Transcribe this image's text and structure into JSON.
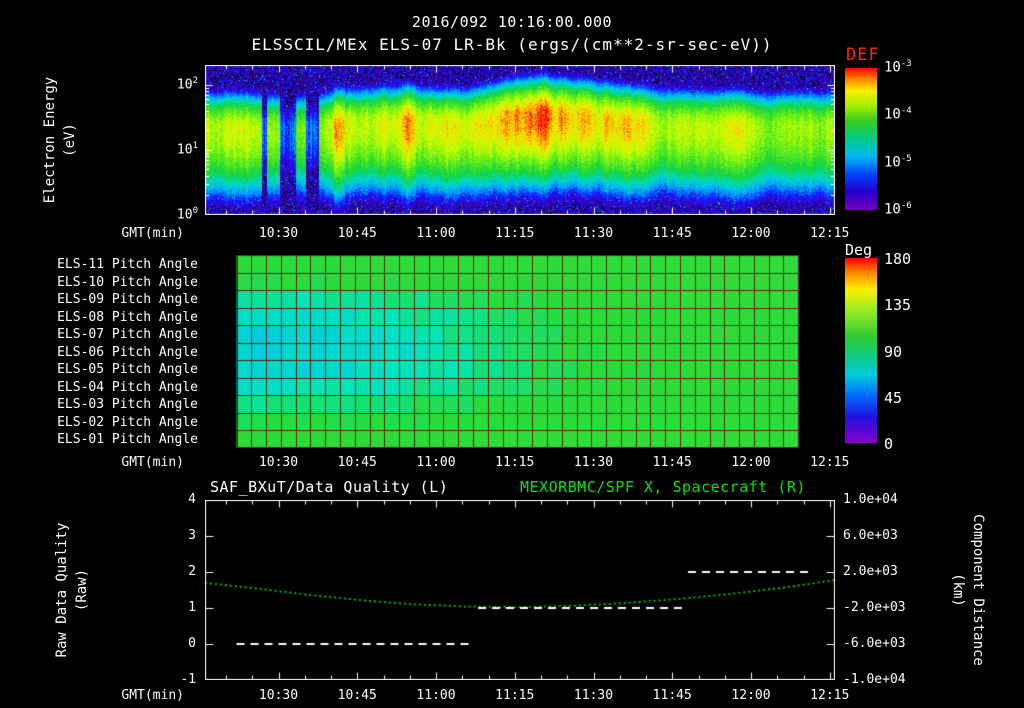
{
  "header": {
    "timestamp_title": "2016/092 10:16:00.000",
    "instrument_title": "ELSSCIL/MEx ELS-07 LR-Bk  (ergs/(cm**2-sr-sec-eV))",
    "def_label": "DEF"
  },
  "colors": {
    "background": "#000000",
    "text": "#ffffff",
    "def_red": "#ff2600",
    "title_green": "#00e600",
    "curve_green": "#00cc00",
    "quality_white": "#ffffff",
    "grid_maroon": "#5e2600"
  },
  "time_axis": {
    "label": "GMT(min)",
    "start": "10:16",
    "range_minutes": 120,
    "tick_labels": [
      "10:30",
      "10:45",
      "11:00",
      "11:15",
      "11:30",
      "11:45",
      "12:00",
      "12:15"
    ],
    "tick_minutes": [
      14,
      29,
      44,
      59,
      74,
      89,
      104,
      119
    ],
    "minor_step_minutes": 5
  },
  "chart_data": [
    {
      "type": "heatmap",
      "name": "electron-energy-spectrogram",
      "ylabel_lines": [
        "Electron Energy",
        "(eV)"
      ],
      "y_axis": {
        "scale": "log",
        "log_range": [
          0,
          2.3
        ],
        "tick_exponents": [
          2,
          1,
          0
        ]
      },
      "colorbar": {
        "label": "DEF",
        "tick_exponents": [
          -3,
          -4,
          -5,
          -6
        ],
        "log10_flux_range": [
          -6.3,
          -2.9
        ],
        "units": "ergs/(cm**2-sr-sec-eV)"
      },
      "model": {
        "step_minutes": 5,
        "band_peak_log10_flux": [
          -3.75,
          -3.8,
          -3.7,
          -4.3,
          -4.2,
          -3.55,
          -3.7,
          -3.6,
          -3.55,
          -3.7,
          -3.65,
          -3.45,
          -3.15,
          -3.1,
          -3.25,
          -3.5,
          -3.45,
          -3.6,
          -3.75,
          -3.7,
          -3.65,
          -3.75,
          -3.7,
          -3.8,
          -3.85
        ],
        "band_center_log10_eV": [
          1.32,
          1.32,
          1.3,
          1.3,
          1.3,
          1.34,
          1.38,
          1.4,
          1.4,
          1.36,
          1.36,
          1.44,
          1.5,
          1.52,
          1.5,
          1.46,
          1.4,
          1.38,
          1.36,
          1.34,
          1.34,
          1.32,
          1.34,
          1.34,
          1.32
        ],
        "sigma_above": 0.26,
        "sigma_below": 0.5,
        "background_log10_flux": -6.45,
        "data_gap_minutes": [
          [
            10.8,
            11.8
          ],
          [
            14.2,
            17.3
          ],
          [
            19.2,
            21.6
          ]
        ],
        "bright_column_minutes": [
          [
            24.5,
            26.5
          ],
          [
            37.5,
            40
          ]
        ]
      }
    },
    {
      "type": "heatmap",
      "name": "pitch-angle-panel",
      "sample_minutes": [
        6,
        20,
        33,
        46,
        60,
        73,
        86,
        100,
        113
      ],
      "data_range_minutes": [
        6,
        113
      ],
      "columns": 38,
      "colorbar": {
        "label": "Deg",
        "ticks": [
          180,
          135,
          90,
          45,
          0
        ],
        "range_deg": [
          0,
          180
        ]
      },
      "rows": [
        {
          "label": "ELS-11 Pitch Angle",
          "values_deg": [
            104,
            104,
            105,
            105,
            106,
            108,
            110,
            110,
            108
          ]
        },
        {
          "label": "ELS-10 Pitch Angle",
          "values_deg": [
            98,
            100,
            101,
            102,
            104,
            106,
            108,
            108,
            106
          ]
        },
        {
          "label": "ELS-09 Pitch Angle",
          "values_deg": [
            88,
            90,
            92,
            96,
            100,
            104,
            107,
            107,
            105
          ]
        },
        {
          "label": "ELS-08 Pitch Angle",
          "values_deg": [
            82,
            84,
            87,
            92,
            98,
            103,
            106,
            106,
            104
          ]
        },
        {
          "label": "ELS-07 Pitch Angle",
          "values_deg": [
            79,
            81,
            84,
            90,
            97,
            102,
            105,
            106,
            104
          ]
        },
        {
          "label": "ELS-06 Pitch Angle",
          "values_deg": [
            77,
            79,
            82,
            88,
            96,
            101,
            104,
            105,
            104
          ]
        },
        {
          "label": "ELS-05 Pitch Angle",
          "values_deg": [
            79,
            81,
            84,
            89,
            96,
            101,
            104,
            105,
            104
          ]
        },
        {
          "label": "ELS-04 Pitch Angle",
          "values_deg": [
            84,
            86,
            88,
            92,
            98,
            102,
            105,
            105,
            104
          ]
        },
        {
          "label": "ELS-03 Pitch Angle",
          "values_deg": [
            92,
            93,
            95,
            98,
            101,
            104,
            106,
            106,
            105
          ]
        },
        {
          "label": "ELS-02 Pitch Angle",
          "values_deg": [
            98,
            99,
            100,
            102,
            104,
            106,
            108,
            107,
            106
          ]
        },
        {
          "label": "ELS-01 Pitch Angle",
          "values_deg": [
            102,
            103,
            104,
            105,
            106,
            108,
            110,
            109,
            107
          ]
        }
      ]
    },
    {
      "type": "line",
      "name": "quality-and-distance",
      "title_left": "SAF_BXuT/Data Quality (L)",
      "title_right": "MEXORBMC/SPF X, Spacecraft (R)",
      "ylabel_left_lines": [
        "Raw Data Quality",
        "(Raw)"
      ],
      "ylabel_right_lines": [
        "Component Distance",
        "(km)"
      ],
      "y_left": {
        "range": [
          -1,
          4
        ],
        "ticks": [
          4,
          3,
          2,
          1,
          0,
          -1
        ]
      },
      "y_right": {
        "range": [
          -10000,
          10000
        ],
        "tick_labels": [
          "1.0e+04",
          "6.0e+03",
          "2.0e+03",
          "-2.0e+03",
          "-6.0e+03",
          "-1.0e+04"
        ],
        "tick_values": [
          10000,
          6000,
          2000,
          -2000,
          -6000,
          -10000
        ]
      },
      "series": [
        {
          "name": "SAF_BXuT Data Quality",
          "axis": "left",
          "style": "dashed",
          "color": "#ffffff",
          "segments": [
            {
              "minutes": [
                6,
                51
              ],
              "value": 0
            },
            {
              "minutes": [
                52,
                91
              ],
              "value": 1
            },
            {
              "minutes": [
                92,
                116
              ],
              "value": 2
            }
          ]
        },
        {
          "name": "MEXORBMC/SPF X Spacecraft",
          "axis": "right",
          "style": "dotted",
          "color": "#00cc00",
          "minutes": [
            0,
            10,
            20,
            30,
            40,
            50,
            60,
            70,
            80,
            90,
            100,
            110,
            120
          ],
          "values_km": [
            800,
            150,
            -550,
            -1150,
            -1600,
            -1850,
            -1900,
            -1750,
            -1450,
            -1000,
            -450,
            250,
            1100
          ]
        }
      ]
    }
  ]
}
